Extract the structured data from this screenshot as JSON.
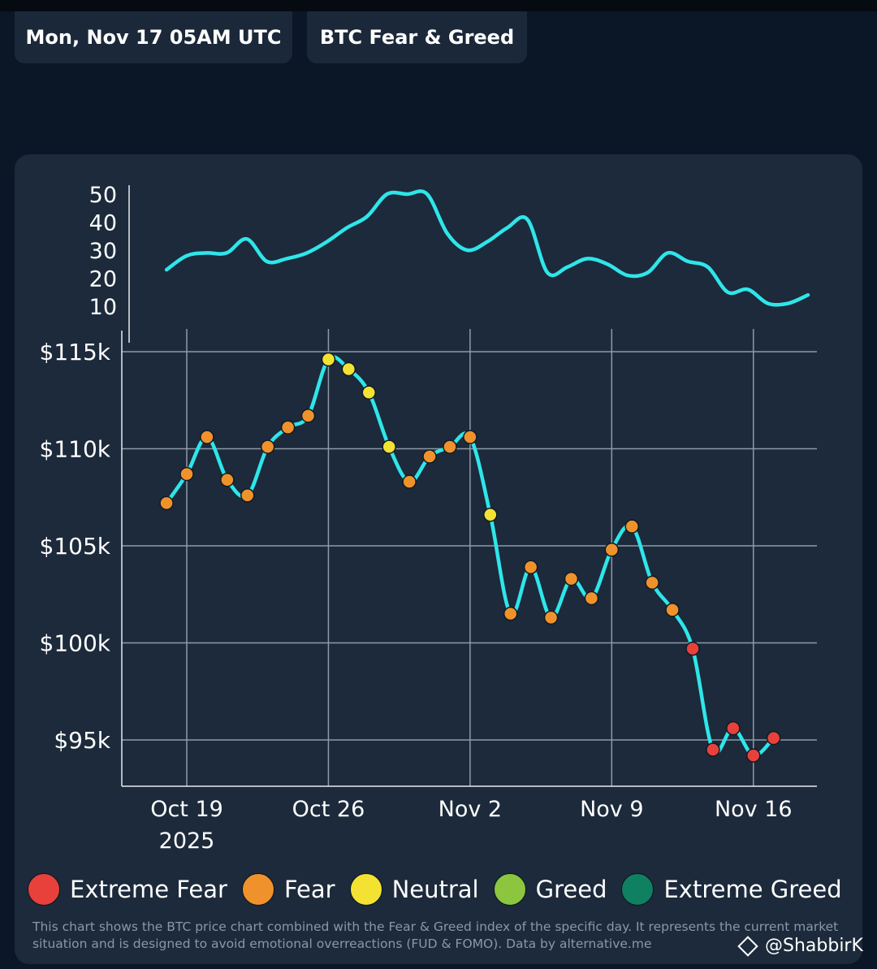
{
  "header": {
    "date_label": "Mon, Nov 17 05AM UTC",
    "title_label": "BTC Fear & Greed"
  },
  "colors": {
    "line": "#2ee6ea",
    "grid": "#8f9aa8",
    "extreme_fear": "#e8413b",
    "fear": "#f0922b",
    "neutral": "#f4e233",
    "greed": "#8cc63f",
    "extreme_greed": "#0f8060"
  },
  "chart_data": [
    {
      "type": "line",
      "title": "Fear & Greed Index",
      "ylim": [
        0,
        55
      ],
      "yticks": [
        "50",
        "40",
        "30",
        "20",
        "10"
      ],
      "ytick_values": [
        50,
        40,
        30,
        20,
        10
      ],
      "x_start_day": -1,
      "x_end_day": 30.7,
      "values": [
        23,
        28,
        29,
        29,
        34,
        26,
        27,
        29,
        33,
        38,
        42,
        50,
        50,
        50,
        36,
        30,
        33,
        38,
        41,
        22,
        24,
        27,
        25,
        21,
        22,
        29,
        26,
        24,
        15,
        16,
        11,
        11,
        14
      ]
    },
    {
      "type": "line",
      "title": "BTC Price",
      "ylim": [
        92600,
        116100
      ],
      "yticks": [
        "$115k",
        "$110k",
        "$105k",
        "$100k",
        "$95k"
      ],
      "ytick_values": [
        115000,
        110000,
        105000,
        100000,
        95000
      ],
      "xticks": [
        "Oct 19",
        "Oct 26",
        "Nov 2",
        "Nov 9",
        "Nov 16"
      ],
      "xtick_days": [
        0,
        7,
        14,
        21,
        28
      ],
      "year_label": "2025",
      "x_start_day": -1,
      "points": [
        {
          "price": 107200,
          "sentiment": "fear"
        },
        {
          "price": 108700,
          "sentiment": "fear"
        },
        {
          "price": 110600,
          "sentiment": "fear"
        },
        {
          "price": 108400,
          "sentiment": "fear"
        },
        {
          "price": 107600,
          "sentiment": "fear"
        },
        {
          "price": 110100,
          "sentiment": "fear"
        },
        {
          "price": 111100,
          "sentiment": "fear"
        },
        {
          "price": 111700,
          "sentiment": "fear"
        },
        {
          "price": 114600,
          "sentiment": "neutral"
        },
        {
          "price": 114100,
          "sentiment": "neutral"
        },
        {
          "price": 112900,
          "sentiment": "neutral"
        },
        {
          "price": 110100,
          "sentiment": "neutral"
        },
        {
          "price": 108300,
          "sentiment": "fear"
        },
        {
          "price": 109600,
          "sentiment": "fear"
        },
        {
          "price": 110100,
          "sentiment": "fear"
        },
        {
          "price": 110600,
          "sentiment": "fear"
        },
        {
          "price": 106600,
          "sentiment": "neutral"
        },
        {
          "price": 101500,
          "sentiment": "fear"
        },
        {
          "price": 103900,
          "sentiment": "fear"
        },
        {
          "price": 101300,
          "sentiment": "fear"
        },
        {
          "price": 103300,
          "sentiment": "fear"
        },
        {
          "price": 102300,
          "sentiment": "fear"
        },
        {
          "price": 104800,
          "sentiment": "fear"
        },
        {
          "price": 106000,
          "sentiment": "fear"
        },
        {
          "price": 103100,
          "sentiment": "fear"
        },
        {
          "price": 101700,
          "sentiment": "fear"
        },
        {
          "price": 99700,
          "sentiment": "extreme_fear"
        },
        {
          "price": 94500,
          "sentiment": "extreme_fear"
        },
        {
          "price": 95600,
          "sentiment": "extreme_fear"
        },
        {
          "price": 94200,
          "sentiment": "extreme_fear"
        },
        {
          "price": 95100,
          "sentiment": "extreme_fear"
        }
      ]
    }
  ],
  "legend": [
    {
      "label": "Extreme Fear",
      "color": "#e8413b"
    },
    {
      "label": "Fear",
      "color": "#f0922b"
    },
    {
      "label": "Neutral",
      "color": "#f4e233"
    },
    {
      "label": "Greed",
      "color": "#8cc63f"
    },
    {
      "label": "Extreme Greed",
      "color": "#0f8060"
    }
  ],
  "footnote": "This chart shows the BTC price chart combined with the Fear & Greed index of the specific day. It represents the current market situation and is designed to avoid emotional overreactions (FUD & FOMO). Data by alternative.me",
  "watermark": "@ShabbirK"
}
